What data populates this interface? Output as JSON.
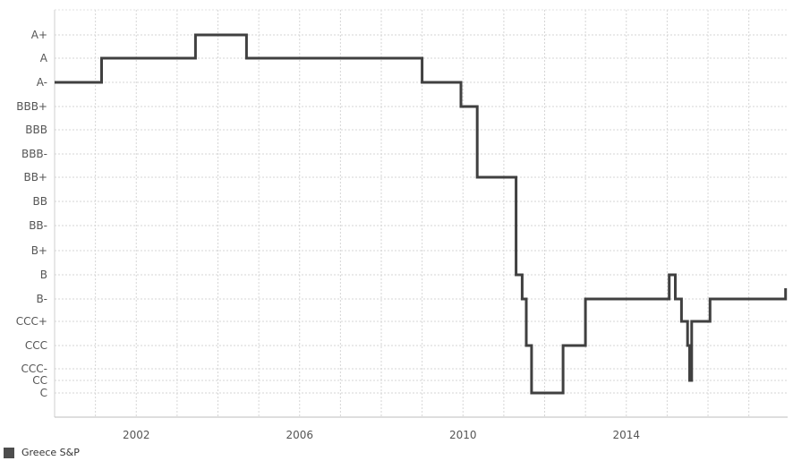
{
  "chart_data": {
    "type": "line",
    "step": true,
    "title": "",
    "xlabel": "",
    "ylabel": "",
    "x_ticks": [
      "2002",
      "2006",
      "2010",
      "2014"
    ],
    "y_categories": [
      "C",
      "CC",
      "CCC-",
      "CCC",
      "CCC+",
      "B-",
      "B",
      "B+",
      "BB-",
      "BB",
      "BB+",
      "BBB-",
      "BBB",
      "BBB+",
      "A-",
      "A",
      "A+"
    ],
    "xlim": [
      2000.0,
      2017.95
    ],
    "grid": true,
    "legend": "bottom-left",
    "series": [
      {
        "name": "Greece S&P",
        "color": "#404040",
        "points": [
          {
            "x": 2000.0,
            "y": "A-"
          },
          {
            "x": 2001.15,
            "y": "A"
          },
          {
            "x": 2003.45,
            "y": "A+"
          },
          {
            "x": 2004.7,
            "y": "A"
          },
          {
            "x": 2004.85,
            "y": "A"
          },
          {
            "x": 2009.0,
            "y": "A-"
          },
          {
            "x": 2009.95,
            "y": "BBB+"
          },
          {
            "x": 2010.35,
            "y": "BB+"
          },
          {
            "x": 2011.3,
            "y": "B"
          },
          {
            "x": 2011.45,
            "y": "B-"
          },
          {
            "x": 2011.55,
            "y": "CCC"
          },
          {
            "x": 2011.68,
            "y": "C"
          },
          {
            "x": 2012.45,
            "y": "CCC"
          },
          {
            "x": 2012.7,
            "y": "CCC"
          },
          {
            "x": 2013.0,
            "y": "B-"
          },
          {
            "x": 2015.05,
            "y": "B"
          },
          {
            "x": 2015.2,
            "y": "B-"
          },
          {
            "x": 2015.35,
            "y": "CCC+"
          },
          {
            "x": 2015.5,
            "y": "CCC"
          },
          {
            "x": 2015.55,
            "y": "CC"
          },
          {
            "x": 2015.6,
            "y": "CCC+"
          },
          {
            "x": 2016.05,
            "y": "B-"
          },
          {
            "x": 2017.9,
            "y": "B-"
          }
        ]
      }
    ]
  }
}
